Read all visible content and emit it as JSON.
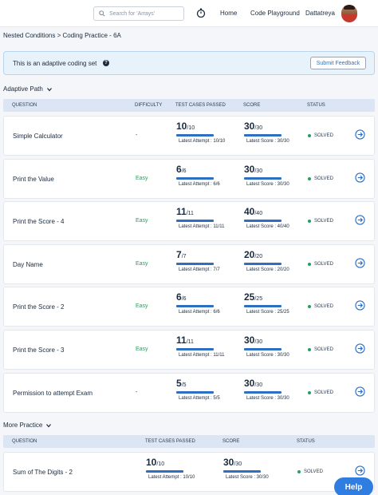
{
  "header": {
    "search_placeholder": "Search for 'Arrays'",
    "nav_home": "Home",
    "nav_playground": "Code Playground",
    "user_name": "Dattatreya"
  },
  "breadcrumb": "Nested Conditions > Coding Practice - 6A",
  "banner": {
    "text": "This is an adaptive coding set",
    "feedback_button": "Submit Feedback"
  },
  "adaptive": {
    "title": "Adaptive Path",
    "columns": {
      "question": "QUESTION",
      "difficulty": "DIFFICULTY",
      "tests": "TEST CASES PASSED",
      "score": "SCORE",
      "status": "STATUS"
    },
    "rows": [
      {
        "name": "Simple Calculator",
        "difficulty": "-",
        "passed": "10",
        "total": "/10",
        "latest_attempt": "Latest Attempt : 10/10",
        "score": "30",
        "score_total": "/30",
        "latest_score": "Latest Score : 30/30",
        "status": "SOLVED",
        "tests_fraction": 1.0,
        "score_fraction": 1.0
      },
      {
        "name": "Print the Value",
        "difficulty": "Easy",
        "passed": "6",
        "total": "/6",
        "latest_attempt": "Latest Attempt : 6/6",
        "score": "30",
        "score_total": "/30",
        "latest_score": "Latest Score : 30/30",
        "status": "SOLVED",
        "tests_fraction": 1.0,
        "score_fraction": 1.0
      },
      {
        "name": "Print the Score - 4",
        "difficulty": "Easy",
        "passed": "11",
        "total": "/11",
        "latest_attempt": "Latest Attempt : 11/11",
        "score": "40",
        "score_total": "/40",
        "latest_score": "Latest Score : 40/40",
        "status": "SOLVED",
        "tests_fraction": 1.0,
        "score_fraction": 1.0
      },
      {
        "name": "Day Name",
        "difficulty": "Easy",
        "passed": "7",
        "total": "/7",
        "latest_attempt": "Latest Attempt : 7/7",
        "score": "20",
        "score_total": "/20",
        "latest_score": "Latest Score : 20/20",
        "status": "SOLVED",
        "tests_fraction": 1.0,
        "score_fraction": 1.0
      },
      {
        "name": "Print the Score - 2",
        "difficulty": "Easy",
        "passed": "6",
        "total": "/6",
        "latest_attempt": "Latest Attempt : 6/6",
        "score": "25",
        "score_total": "/25",
        "latest_score": "Latest Score : 25/25",
        "status": "SOLVED",
        "tests_fraction": 1.0,
        "score_fraction": 1.0
      },
      {
        "name": "Print the Score - 3",
        "difficulty": "Easy",
        "passed": "11",
        "total": "/11",
        "latest_attempt": "Latest Attempt : 11/11",
        "score": "30",
        "score_total": "/30",
        "latest_score": "Latest Score : 30/30",
        "status": "SOLVED",
        "tests_fraction": 1.0,
        "score_fraction": 1.0
      },
      {
        "name": "Permission to attempt Exam",
        "difficulty": "-",
        "passed": "5",
        "total": "/5",
        "latest_attempt": "Latest Attempt : 5/5",
        "score": "30",
        "score_total": "/30",
        "latest_score": "Latest Score : 30/30",
        "status": "SOLVED",
        "tests_fraction": 1.0,
        "score_fraction": 1.0
      }
    ]
  },
  "more": {
    "title": "More Practice",
    "columns": {
      "question": "QUESTION",
      "tests": "TEST CASES PASSED",
      "score": "SCORE",
      "status": "STATUS"
    },
    "rows": [
      {
        "name": "Sum of The Digits - 2",
        "passed": "10",
        "total": "/10",
        "latest_attempt": "Latest Attempt : 10/10",
        "score": "30",
        "score_total": "/30",
        "latest_score": "Latest Score : 30/30",
        "status": "SOLVED",
        "tests_fraction": 1.0,
        "score_fraction": 1.0
      }
    ]
  },
  "help_label": "Help",
  "colors": {
    "easy": "#25a05c",
    "solved": "#25a05c",
    "accent": "#2f6fc2",
    "help": "#2f7de1"
  },
  "icons": {
    "search": "search-icon",
    "streak": "streak-icon",
    "chevron": "chevron-down-icon",
    "info": "info-icon",
    "go": "arrow-right-circle-icon"
  }
}
